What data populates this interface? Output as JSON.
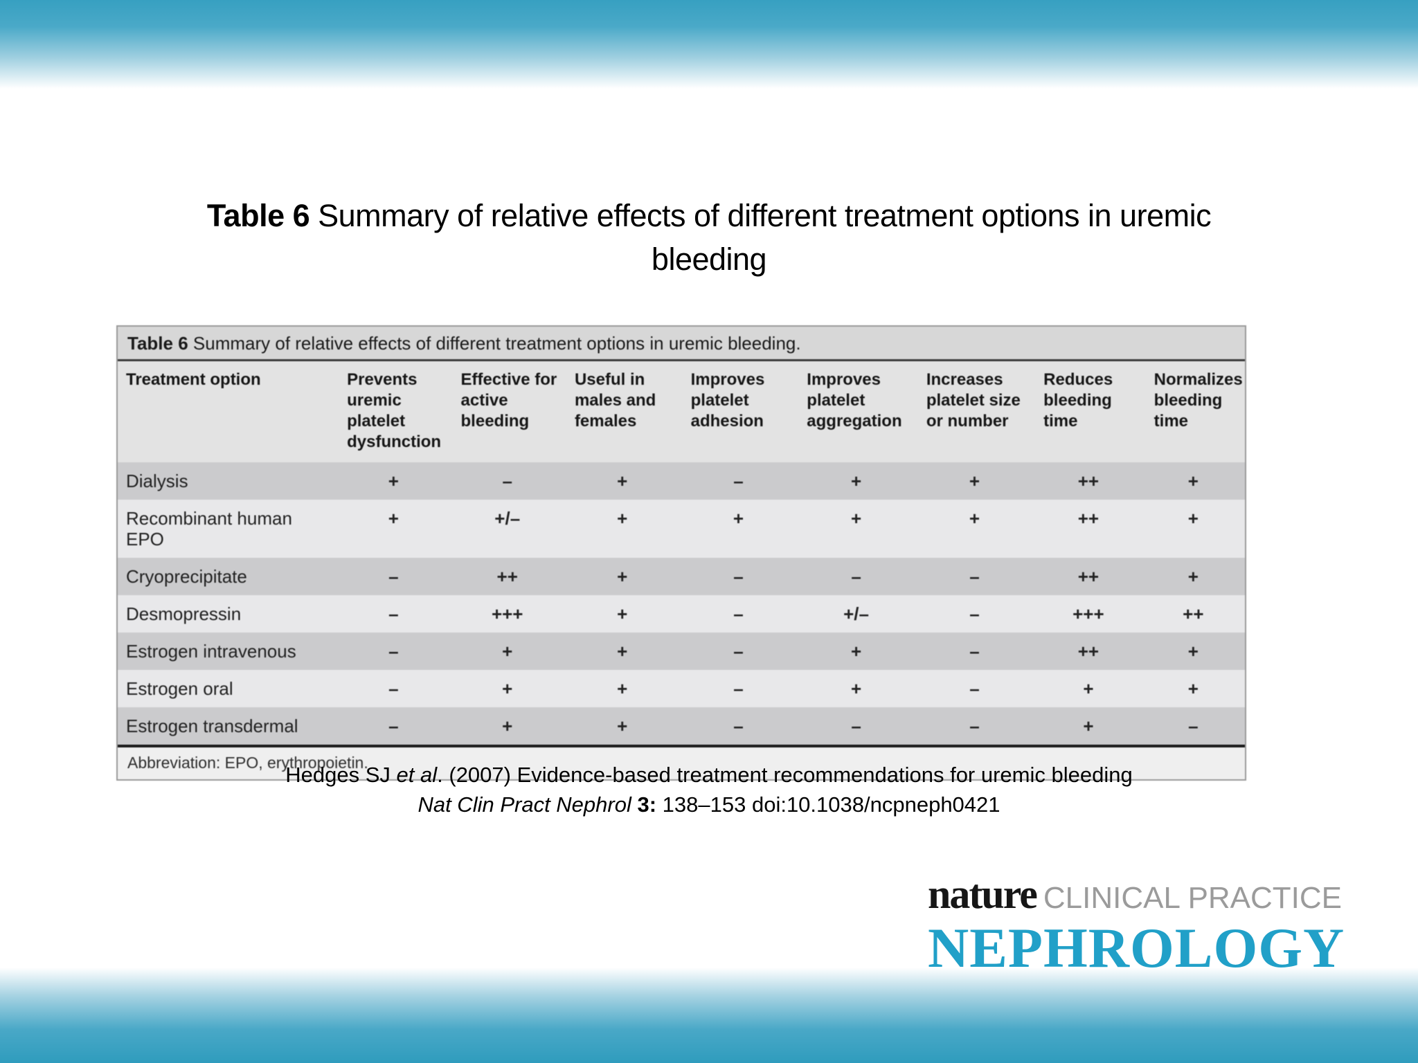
{
  "slide": {
    "title_bold": "Table 6",
    "title_rest": " Summary of relative effects of different treatment options in uremic",
    "title_line2": "bleeding"
  },
  "table": {
    "caption_bold": "Table 6",
    "caption_rest": " Summary of relative effects of different treatment options in uremic bleeding.",
    "columns": [
      "Treatment option",
      "Prevents uremic platelet dysfunction",
      "Effective for active bleeding",
      "Useful in males and females",
      "Improves platelet adhesion",
      "Improves platelet aggregation",
      "Increases platelet size or number",
      "Reduces bleeding time",
      "Normalizes bleeding time"
    ],
    "rows": [
      {
        "option": "Dialysis",
        "values": [
          "+",
          "–",
          "+",
          "–",
          "+",
          "+",
          "++",
          "+"
        ]
      },
      {
        "option": "Recombinant human EPO",
        "values": [
          "+",
          "+/–",
          "+",
          "+",
          "+",
          "+",
          "++",
          "+"
        ]
      },
      {
        "option": "Cryoprecipitate",
        "values": [
          "–",
          "++",
          "+",
          "–",
          "–",
          "–",
          "++",
          "+"
        ]
      },
      {
        "option": "Desmopressin",
        "values": [
          "–",
          "+++",
          "+",
          "–",
          "+/–",
          "–",
          "+++",
          "++"
        ]
      },
      {
        "option": "Estrogen intravenous",
        "values": [
          "–",
          "+",
          "+",
          "–",
          "+",
          "–",
          "++",
          "+"
        ]
      },
      {
        "option": "Estrogen oral",
        "values": [
          "–",
          "+",
          "+",
          "–",
          "+",
          "–",
          "+",
          "+"
        ]
      },
      {
        "option": "Estrogen transdermal",
        "values": [
          "–",
          "+",
          "+",
          "–",
          "–",
          "–",
          "+",
          "–"
        ]
      }
    ],
    "footnote": "Abbreviation: EPO, erythropoietin."
  },
  "citation": {
    "line1_pre": "Hedges SJ ",
    "line1_italic": "et al",
    "line1_post": ". (2007) Evidence-based treatment recommendations for uremic bleeding",
    "line2_italic": "Nat Clin Pract Nephrol ",
    "line2_bold": "3:",
    "line2_post": " 138–153 doi:10.1038/ncpneph0421"
  },
  "logo": {
    "nature": "nature",
    "clinical_practice": "CLINICAL PRACTICE",
    "journal": "NEPHROLOGY"
  },
  "colors": {
    "band_teal": "#3aa2c3",
    "logo_teal": "#21a0c8",
    "logo_gray": "#9b9b9b",
    "row_dark": "#cbcbcd",
    "row_light": "#e8e8ea"
  }
}
